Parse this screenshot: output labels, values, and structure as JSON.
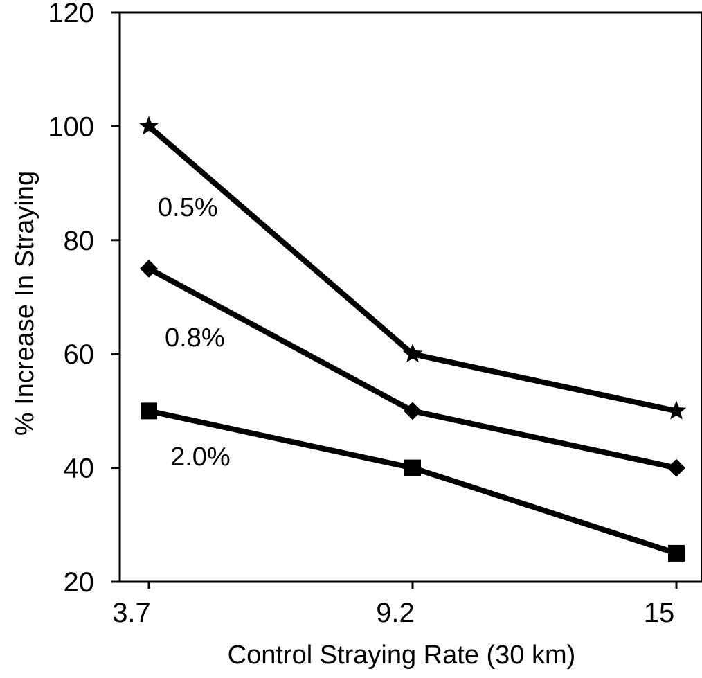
{
  "chart_data": {
    "type": "line",
    "title": "",
    "xlabel": "Control Straying Rate (30 km)",
    "ylabel": "% Increase In Straying",
    "x": [
      3.7,
      9.2,
      15
    ],
    "x_tick_labels": [
      "3.7",
      "9.2",
      "15"
    ],
    "ylim": [
      20,
      120
    ],
    "y_ticks": [
      20,
      40,
      60,
      80,
      100,
      120
    ],
    "y_tick_labels": [
      "20",
      "40",
      "60",
      "80",
      "100",
      "120"
    ],
    "grid": false,
    "legend": "none",
    "series": [
      {
        "name": "0.5%",
        "marker": "star",
        "values": [
          100,
          60,
          50
        ]
      },
      {
        "name": "0.8%",
        "marker": "diamond",
        "values": [
          75,
          50,
          40
        ]
      },
      {
        "name": "2.0%",
        "marker": "square",
        "values": [
          50,
          40,
          25
        ]
      }
    ],
    "line_color": "#000000"
  }
}
